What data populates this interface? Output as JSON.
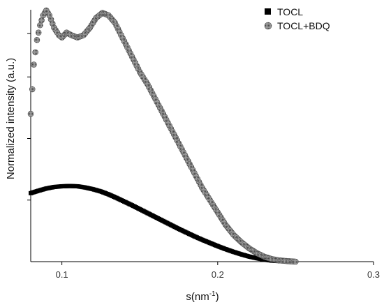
{
  "chart_data": {
    "type": "scatter",
    "title": "",
    "xlabel": "s(nm",
    "xlabel_superscript": "-1",
    "xlabel_suffix": ")",
    "ylabel": "Normalized intensity (a.u.)",
    "xlim": [
      0.08,
      0.3
    ],
    "ylim": [
      0,
      1.0
    ],
    "x_ticks": [
      0.1,
      0.2,
      0.3
    ],
    "x_tick_labels": [
      "0.1",
      "0.2",
      "0.3"
    ],
    "y_ticks": [
      0.25,
      0.5,
      0.75,
      1.0
    ],
    "y_tick_labels_shown": false,
    "grid": false,
    "legend_position": "top-right",
    "series": [
      {
        "name": "TOCL",
        "marker": "square",
        "color": "#000000",
        "x": [
          0.08,
          0.085,
          0.09,
          0.095,
          0.1,
          0.105,
          0.11,
          0.115,
          0.12,
          0.125,
          0.13,
          0.135,
          0.14,
          0.145,
          0.15,
          0.155,
          0.16,
          0.165,
          0.17,
          0.175,
          0.18,
          0.185,
          0.19,
          0.195,
          0.2,
          0.205,
          0.21,
          0.215,
          0.22,
          0.225,
          0.23,
          0.235,
          0.24,
          0.245
        ],
        "y": [
          0.278,
          0.288,
          0.297,
          0.303,
          0.306,
          0.307,
          0.306,
          0.301,
          0.294,
          0.285,
          0.273,
          0.259,
          0.244,
          0.229,
          0.213,
          0.197,
          0.181,
          0.165,
          0.149,
          0.133,
          0.118,
          0.103,
          0.089,
          0.076,
          0.063,
          0.051,
          0.04,
          0.03,
          0.021,
          0.014,
          0.008,
          0.004,
          0.002,
          0.001
        ]
      },
      {
        "name": "TOCL+BDQ",
        "marker": "circle",
        "color": "#8a8a8a",
        "x": [
          0.08,
          0.082,
          0.084,
          0.086,
          0.088,
          0.09,
          0.092,
          0.095,
          0.098,
          0.1,
          0.103,
          0.106,
          0.11,
          0.114,
          0.118,
          0.122,
          0.126,
          0.13,
          0.134,
          0.138,
          0.142,
          0.146,
          0.15,
          0.155,
          0.16,
          0.165,
          0.17,
          0.175,
          0.18,
          0.185,
          0.19,
          0.195,
          0.2,
          0.205,
          0.21,
          0.215,
          0.22,
          0.225,
          0.23,
          0.235,
          0.24,
          0.245,
          0.25
        ],
        "y": [
          0.6,
          0.8,
          0.9,
          0.96,
          1.0,
          1.02,
          1.0,
          0.95,
          0.92,
          0.91,
          0.93,
          0.92,
          0.91,
          0.92,
          0.95,
          0.99,
          1.01,
          1.0,
          0.97,
          0.92,
          0.87,
          0.82,
          0.77,
          0.72,
          0.66,
          0.6,
          0.54,
          0.48,
          0.42,
          0.36,
          0.3,
          0.25,
          0.2,
          0.15,
          0.11,
          0.08,
          0.055,
          0.035,
          0.02,
          0.01,
          0.005,
          0.002,
          0.0
        ]
      }
    ]
  }
}
